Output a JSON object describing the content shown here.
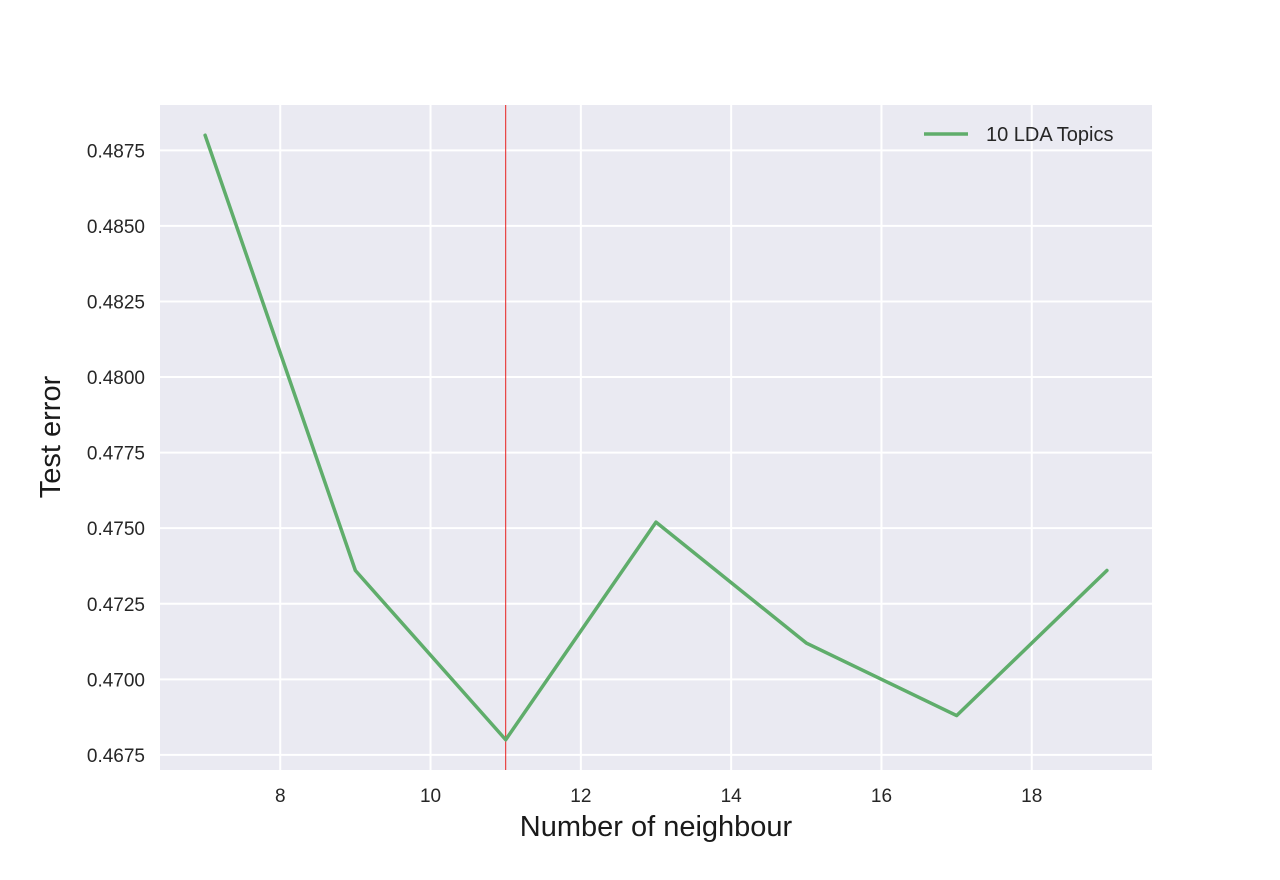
{
  "chart_data": {
    "type": "line",
    "title": "",
    "xlabel": "Number of neighbour",
    "ylabel": "Test error",
    "xlim": [
      6.4,
      19.6
    ],
    "ylim": [
      0.467,
      0.489
    ],
    "xticks": [
      8,
      10,
      12,
      14,
      16,
      18
    ],
    "yticks": [
      0.4675,
      0.47,
      0.4725,
      0.475,
      0.4775,
      0.48,
      0.4825,
      0.485,
      0.4875
    ],
    "grid": true,
    "legend_position": "top-right",
    "series": [
      {
        "name": "10 LDA Topics",
        "color": "#5fad6b",
        "x": [
          7,
          9,
          11,
          13,
          15,
          17,
          19
        ],
        "y": [
          0.488,
          0.4736,
          0.468,
          0.4752,
          0.4712,
          0.4688,
          0.4736
        ]
      }
    ],
    "vertical_line": {
      "x": 11,
      "color": "#e8211f"
    },
    "background_color": "#eaeaf2",
    "grid_color": "#ffffff"
  }
}
